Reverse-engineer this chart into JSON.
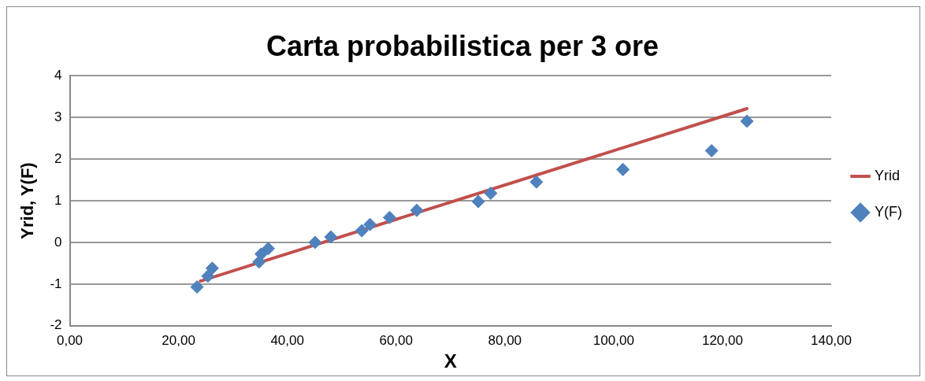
{
  "chart_data": {
    "type": "scatter",
    "title": "Carta probabilistica per 3 ore",
    "xlabel": "X",
    "ylabel": "Yrid, Y(F)",
    "xlim": [
      0,
      140
    ],
    "xticks": [
      {
        "value": 0,
        "label": "0,00"
      },
      {
        "value": 20,
        "label": "20,00"
      },
      {
        "value": 40,
        "label": "40,00"
      },
      {
        "value": 60,
        "label": "60,00"
      },
      {
        "value": 80,
        "label": "80,00"
      },
      {
        "value": 100,
        "label": "100,00"
      },
      {
        "value": 120,
        "label": "120,00"
      },
      {
        "value": 140,
        "label": "140,00"
      }
    ],
    "ylim": [
      -2,
      4
    ],
    "yticks": [
      -2,
      -1,
      0,
      1,
      2,
      3,
      4
    ],
    "grid": "y",
    "legend": "right",
    "series": [
      {
        "name": "Yrid",
        "type": "line",
        "color": "#c0504d",
        "marker": "none",
        "x": [
          24,
          124.5
        ],
        "values": [
          -0.93,
          3.21
        ]
      },
      {
        "name": "Y(F)",
        "color": "#4f81bd",
        "marker": "diamond",
        "x": [
          23.4,
          25.4,
          26.2,
          34.8,
          35.2,
          36.5,
          45.1,
          48.0,
          53.7,
          55.2,
          58.8,
          63.8,
          75.1,
          77.4,
          85.8,
          101.7,
          118.0,
          124.5
        ],
        "values": [
          -1.07,
          -0.81,
          -0.62,
          -0.47,
          -0.28,
          -0.15,
          0.0,
          0.13,
          0.28,
          0.43,
          0.6,
          0.77,
          0.98,
          1.18,
          1.45,
          1.75,
          2.2,
          2.91
        ]
      }
    ]
  }
}
